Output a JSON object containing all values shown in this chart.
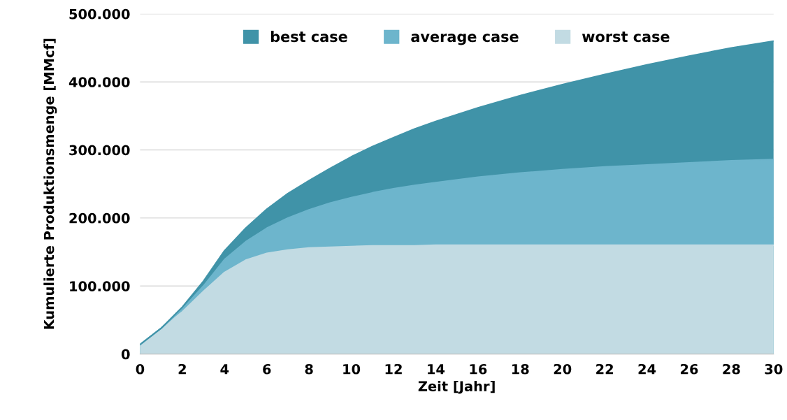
{
  "chart_data": {
    "type": "area",
    "xlabel": "Zeit [Jahr]",
    "ylabel": "Kumulierte Produktionsmenge [MMcf]",
    "x": [
      0,
      1,
      2,
      3,
      4,
      5,
      6,
      7,
      8,
      9,
      10,
      11,
      12,
      13,
      14,
      16,
      18,
      20,
      22,
      24,
      26,
      28,
      30
    ],
    "series": [
      {
        "name": "best case",
        "color": "#4093a8",
        "values": [
          14000,
          38000,
          69000,
          107000,
          152000,
          185000,
          213000,
          236000,
          255000,
          273000,
          290000,
          305000,
          318000,
          331000,
          342000,
          362000,
          380000,
          396000,
          411000,
          425000,
          438000,
          450000,
          460000
        ]
      },
      {
        "name": "average case",
        "color": "#6db5cc",
        "values": [
          14000,
          38000,
          66000,
          100000,
          139000,
          165000,
          185000,
          200000,
          212000,
          222000,
          230000,
          237000,
          243000,
          248000,
          252000,
          260000,
          266000,
          271000,
          275000,
          278000,
          281000,
          284000,
          286000
        ]
      },
      {
        "name": "worst case",
        "color": "#c2dbe3",
        "values": [
          14000,
          38000,
          62000,
          92000,
          120000,
          138000,
          148000,
          153000,
          156000,
          157000,
          158000,
          159000,
          159000,
          159000,
          160000,
          160000,
          160000,
          160000,
          160000,
          160000,
          160000,
          160000,
          160000
        ]
      }
    ],
    "xlim": [
      0,
      30
    ],
    "xticks": [
      0,
      2,
      4,
      6,
      8,
      10,
      12,
      14,
      16,
      18,
      20,
      22,
      24,
      26,
      28,
      30
    ],
    "ylim": [
      0,
      500000
    ],
    "yticks": [
      {
        "value": 0,
        "label": "0"
      },
      {
        "value": 100000,
        "label": "100.000"
      },
      {
        "value": 200000,
        "label": "200.000"
      },
      {
        "value": 300000,
        "label": "300.000"
      },
      {
        "value": 400000,
        "label": "400.000"
      },
      {
        "value": 500000,
        "label": "500.000"
      }
    ],
    "grid": "y",
    "legend": "top"
  }
}
